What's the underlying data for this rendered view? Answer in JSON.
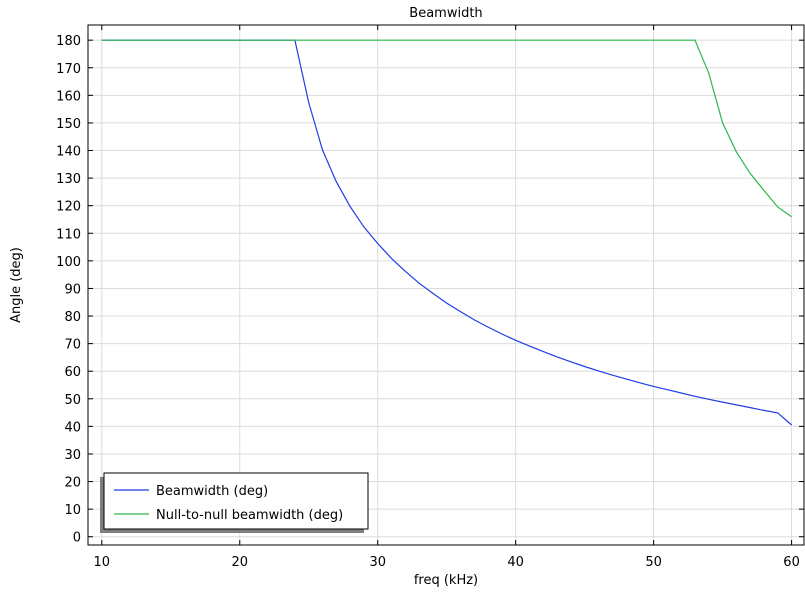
{
  "chart_data": {
    "type": "line",
    "title": "Beamwidth",
    "xlabel": "freq (kHz)",
    "ylabel": "Angle (deg)",
    "xlim": [
      9,
      60.9
    ],
    "ylim": [
      -3,
      185.5
    ],
    "xticks": [
      10,
      20,
      30,
      40,
      50,
      60
    ],
    "yticks": [
      0,
      10,
      20,
      30,
      40,
      50,
      60,
      70,
      80,
      90,
      100,
      110,
      120,
      130,
      140,
      150,
      160,
      170,
      180
    ],
    "grid": true,
    "legend_position": "bottom-left",
    "series": [
      {
        "name": "Beamwidth (deg)",
        "color": "#1f3fe6",
        "points": [
          [
            10,
            180
          ],
          [
            24,
            180
          ],
          [
            25,
            157.4
          ],
          [
            26,
            140.2
          ],
          [
            27,
            128.7
          ],
          [
            28,
            119.7
          ],
          [
            29,
            112.3
          ],
          [
            30,
            106.3
          ],
          [
            31,
            100.9
          ],
          [
            32,
            96.2
          ],
          [
            33,
            91.9
          ],
          [
            34,
            88.2
          ],
          [
            35,
            84.7
          ],
          [
            36,
            81.6
          ],
          [
            37,
            78.6
          ],
          [
            38,
            76.0
          ],
          [
            39,
            73.5
          ],
          [
            40,
            71.2
          ],
          [
            41,
            69.1
          ],
          [
            42,
            67.1
          ],
          [
            43,
            65.2
          ],
          [
            44,
            63.4
          ],
          [
            45,
            61.7
          ],
          [
            46,
            60.1
          ],
          [
            47,
            58.6
          ],
          [
            48,
            57.2
          ],
          [
            49,
            55.8
          ],
          [
            50,
            54.5
          ],
          [
            51,
            53.3
          ],
          [
            52,
            52.1
          ],
          [
            53,
            50.9
          ],
          [
            54,
            49.8
          ],
          [
            55,
            48.8
          ],
          [
            56,
            47.8
          ],
          [
            57,
            46.8
          ],
          [
            58,
            45.8
          ],
          [
            59,
            44.9
          ],
          [
            60,
            40.5
          ]
        ]
      },
      {
        "name": "Null-to-null beamwidth (deg)",
        "color": "#2db84a",
        "points": [
          [
            10,
            180
          ],
          [
            53,
            180
          ],
          [
            54,
            168
          ],
          [
            55,
            150
          ],
          [
            56,
            139.5
          ],
          [
            57,
            131.7
          ],
          [
            58,
            125.5
          ],
          [
            59,
            119.5
          ],
          [
            60,
            116
          ]
        ]
      }
    ]
  }
}
